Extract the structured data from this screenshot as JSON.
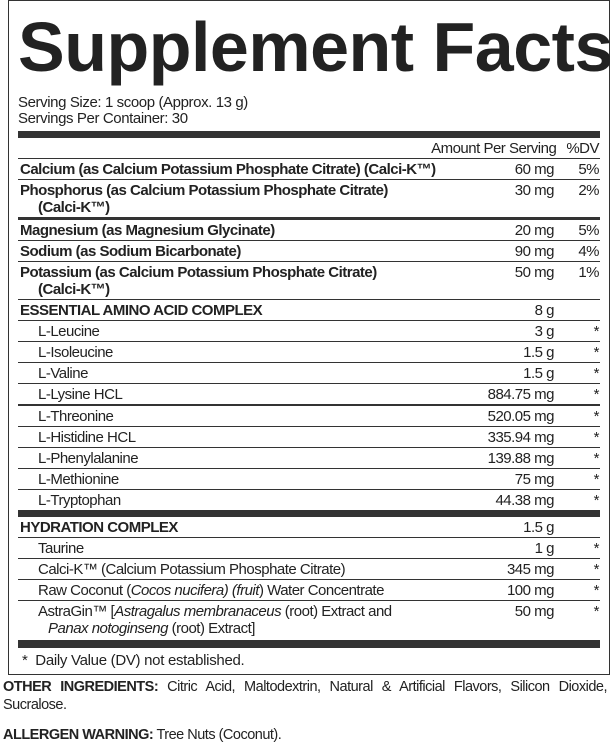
{
  "title": "Supplement Facts",
  "serving_size": "Serving Size: 1 scoop (Approx. 13 g)",
  "servings_per_container": "Servings Per Container: 30",
  "header": {
    "amount": "Amount Per Serving",
    "dv": "%DV"
  },
  "minerals": [
    {
      "name": "Calcium (as Calcium Potassium Phosphate Citrate) (Calci-K™)",
      "amount": "60 mg",
      "dv": "5%"
    },
    {
      "name": "Phosphorus (as Calcium Potassium Phosphate Citrate)",
      "name2": "(Calci-K™)",
      "amount": "30 mg",
      "dv": "2%"
    },
    {
      "name": "Magnesium (as Magnesium Glycinate)",
      "amount": "20 mg",
      "dv": "5%"
    },
    {
      "name": "Sodium (as Sodium Bicarbonate)",
      "amount": "90 mg",
      "dv": "4%"
    },
    {
      "name": "Potassium (as Calcium Potassium Phosphate Citrate)",
      "name2": "(Calci-K™)",
      "amount": "50 mg",
      "dv": "1%"
    }
  ],
  "eaa": {
    "name": "ESSENTIAL AMINO ACID COMPLEX",
    "amount": "8 g",
    "items": [
      {
        "name": "L-Leucine",
        "amount": "3 g",
        "dv": "*"
      },
      {
        "name": "L-Isoleucine",
        "amount": "1.5 g",
        "dv": "*"
      },
      {
        "name": "L-Valine",
        "amount": "1.5 g",
        "dv": "*"
      },
      {
        "name": "L-Lysine HCL",
        "amount": "884.75 mg",
        "dv": "*"
      },
      {
        "name": "L-Threonine",
        "amount": "520.05 mg",
        "dv": "*"
      },
      {
        "name": "L-Histidine HCL",
        "amount": "335.94 mg",
        "dv": "*"
      },
      {
        "name": "L-Phenylalanine",
        "amount": "139.88 mg",
        "dv": "*"
      },
      {
        "name": "L-Methionine",
        "amount": "75 mg",
        "dv": "*"
      },
      {
        "name": "L-Tryptophan",
        "amount": "44.38 mg",
        "dv": "*"
      }
    ]
  },
  "hydration": {
    "name": "HYDRATION COMPLEX",
    "amount": "1.5 g",
    "items": [
      {
        "name": "Taurine",
        "amount": "1 g",
        "dv": "*"
      },
      {
        "name": "Calci-K™ (Calcium Potassium Phosphate Citrate)",
        "amount": "345 mg",
        "dv": "*"
      },
      {
        "name_parts": [
          "Raw Coconut (",
          "Cocos nucifera) (fruit",
          ") Water Concentrate"
        ],
        "amount": "100 mg",
        "dv": "*"
      },
      {
        "name_parts": [
          "AstraGin™ [",
          "Astragalus membranaceus",
          " (root) Extract and",
          "Panax notoginseng",
          " (root) Extract]"
        ],
        "amount": "50 mg",
        "dv": "*"
      }
    ]
  },
  "footnote": {
    "symbol": "*",
    "text": "Daily Value (DV) not established."
  },
  "other_ingredients": {
    "label": "OTHER INGREDIENTS:",
    "text": " Citric Acid, Maltodextrin, Natural & Artificial Flavors, Silicon Dioxide, Sucralose."
  },
  "allergen": {
    "label": "ALLERGEN WARNING:",
    "text": " Tree Nuts (Coconut)."
  }
}
